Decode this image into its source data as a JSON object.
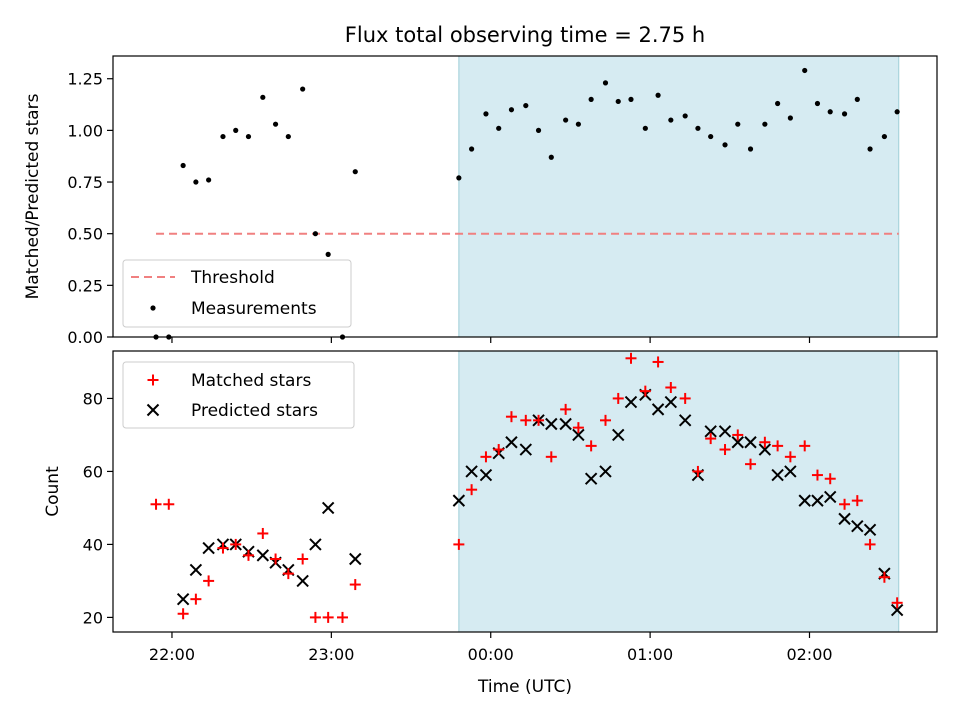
{
  "chart_data": {
    "title": "Flux total observing time = 2.75 h",
    "xlabel": "Time (UTC)",
    "x_tick_labels": [
      "22:00",
      "23:00",
      "00:00",
      "01:00",
      "02:00"
    ],
    "x_tick_positions_hours": [
      22,
      23,
      24,
      25,
      26
    ],
    "xlim_hours": [
      21.63,
      26.8
    ],
    "shaded_span_hours": [
      23.8,
      26.56
    ],
    "shade_color": "#add8e6",
    "panels": [
      {
        "type": "scatter",
        "ylabel": "Matched/Predicted stars",
        "ylim": [
          0,
          1.36
        ],
        "y_ticks": [
          0.0,
          0.25,
          0.5,
          0.75,
          1.0,
          1.25
        ],
        "y_tick_labels": [
          "0.00",
          "0.25",
          "0.50",
          "0.75",
          "1.00",
          "1.25"
        ],
        "legend_position": "lower-left",
        "threshold": {
          "name": "Threshold",
          "value": 0.5,
          "x_range_hours": [
            21.9,
            26.56
          ],
          "color": "#f08080"
        },
        "series": [
          {
            "name": "Measurements",
            "color": "#000000",
            "x": [
              21.9,
              21.98,
              22.07,
              22.15,
              22.23,
              22.32,
              22.4,
              22.48,
              22.57,
              22.65,
              22.73,
              22.82,
              22.9,
              22.98,
              23.07,
              23.15,
              23.8,
              23.88,
              23.97,
              24.05,
              24.13,
              24.22,
              24.3,
              24.38,
              24.47,
              24.55,
              24.63,
              24.72,
              24.8,
              24.88,
              24.97,
              25.05,
              25.13,
              25.22,
              25.3,
              25.38,
              25.47,
              25.55,
              25.63,
              25.72,
              25.8,
              25.88,
              25.97,
              26.05,
              26.13,
              26.22,
              26.3,
              26.38,
              26.47,
              26.55
            ],
            "y": [
              0.0,
              0.0,
              0.83,
              0.75,
              0.76,
              0.97,
              1.0,
              0.97,
              1.16,
              1.03,
              0.97,
              1.2,
              0.5,
              0.4,
              0.0,
              0.8,
              0.77,
              0.91,
              1.08,
              1.01,
              1.1,
              1.12,
              1.0,
              0.87,
              1.05,
              1.03,
              1.15,
              1.23,
              1.14,
              1.15,
              1.01,
              1.17,
              1.05,
              1.07,
              1.01,
              0.97,
              0.93,
              1.03,
              0.91,
              1.03,
              1.13,
              1.06,
              1.29,
              1.13,
              1.09,
              1.08,
              1.15,
              0.91,
              0.97,
              1.09
            ]
          }
        ]
      },
      {
        "type": "scatter",
        "ylabel": "Count",
        "ylim": [
          16,
          93
        ],
        "y_ticks": [
          20,
          40,
          60,
          80
        ],
        "y_tick_labels": [
          "20",
          "40",
          "60",
          "80"
        ],
        "legend_position": "upper-left",
        "series": [
          {
            "name": "Matched stars",
            "marker": "+",
            "color": "#ff0000",
            "x": [
              21.9,
              21.98,
              22.07,
              22.15,
              22.23,
              22.32,
              22.4,
              22.48,
              22.57,
              22.65,
              22.73,
              22.82,
              22.9,
              22.98,
              23.07,
              23.15,
              23.8,
              23.88,
              23.97,
              24.05,
              24.13,
              24.22,
              24.3,
              24.38,
              24.47,
              24.55,
              24.63,
              24.72,
              24.8,
              24.88,
              24.97,
              25.05,
              25.13,
              25.22,
              25.3,
              25.38,
              25.47,
              25.55,
              25.63,
              25.72,
              25.8,
              25.88,
              25.97,
              26.05,
              26.13,
              26.22,
              26.3,
              26.38,
              26.47,
              26.55
            ],
            "y": [
              51,
              51,
              21,
              25,
              30,
              39,
              40,
              37,
              43,
              36,
              32,
              36,
              20,
              20,
              20,
              29,
              40,
              55,
              64,
              66,
              75,
              74,
              74,
              64,
              77,
              72,
              67,
              74,
              80,
              91,
              82,
              90,
              83,
              80,
              60,
              69,
              66,
              70,
              62,
              68,
              67,
              64,
              67,
              59,
              58,
              51,
              52,
              40,
              31,
              24
            ]
          },
          {
            "name": "Predicted stars",
            "marker": "x",
            "color": "#000000",
            "x": [
              21.9,
              21.98,
              22.07,
              22.15,
              22.23,
              22.32,
              22.4,
              22.48,
              22.57,
              22.65,
              22.73,
              22.82,
              22.9,
              22.98,
              23.07,
              23.15,
              23.8,
              23.88,
              23.97,
              24.05,
              24.13,
              24.22,
              24.3,
              24.38,
              24.47,
              24.55,
              24.63,
              24.72,
              24.8,
              24.88,
              24.97,
              25.05,
              25.13,
              25.22,
              25.3,
              25.38,
              25.47,
              25.55,
              25.63,
              25.72,
              25.8,
              25.88,
              25.97,
              26.05,
              26.13,
              26.22,
              26.3,
              26.38,
              26.47,
              26.55
            ],
            "y": [
              null,
              null,
              25,
              33,
              39,
              40,
              40,
              38,
              37,
              35,
              33,
              30,
              40,
              50,
              null,
              36,
              52,
              60,
              59,
              65,
              68,
              66,
              74,
              73,
              73,
              70,
              58,
              60,
              70,
              79,
              81,
              77,
              79,
              74,
              59,
              71,
              71,
              68,
              68,
              66,
              59,
              60,
              52,
              52,
              53,
              47,
              45,
              44,
              32,
              22
            ]
          }
        ]
      }
    ]
  }
}
